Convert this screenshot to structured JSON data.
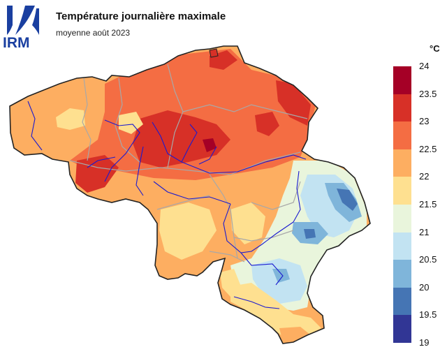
{
  "header": {
    "title": "Température journalière maximale",
    "subtitle": "moyenne août 2023",
    "logo_text": "IRM"
  },
  "legend": {
    "unit": "°C",
    "ticks": [
      "24",
      "23.5",
      "23",
      "22.5",
      "22",
      "21.5",
      "21",
      "20.5",
      "20",
      "19.5",
      "19"
    ],
    "colors": [
      "#a50026",
      "#d73027",
      "#f46d43",
      "#fdae61",
      "#fee090",
      "#e9f5dc",
      "#c2e3f2",
      "#7fb5da",
      "#4575b4",
      "#313695"
    ]
  },
  "map": {
    "region": "Belgium",
    "variable": "daily maximum temperature",
    "range_c": [
      19,
      24
    ]
  }
}
